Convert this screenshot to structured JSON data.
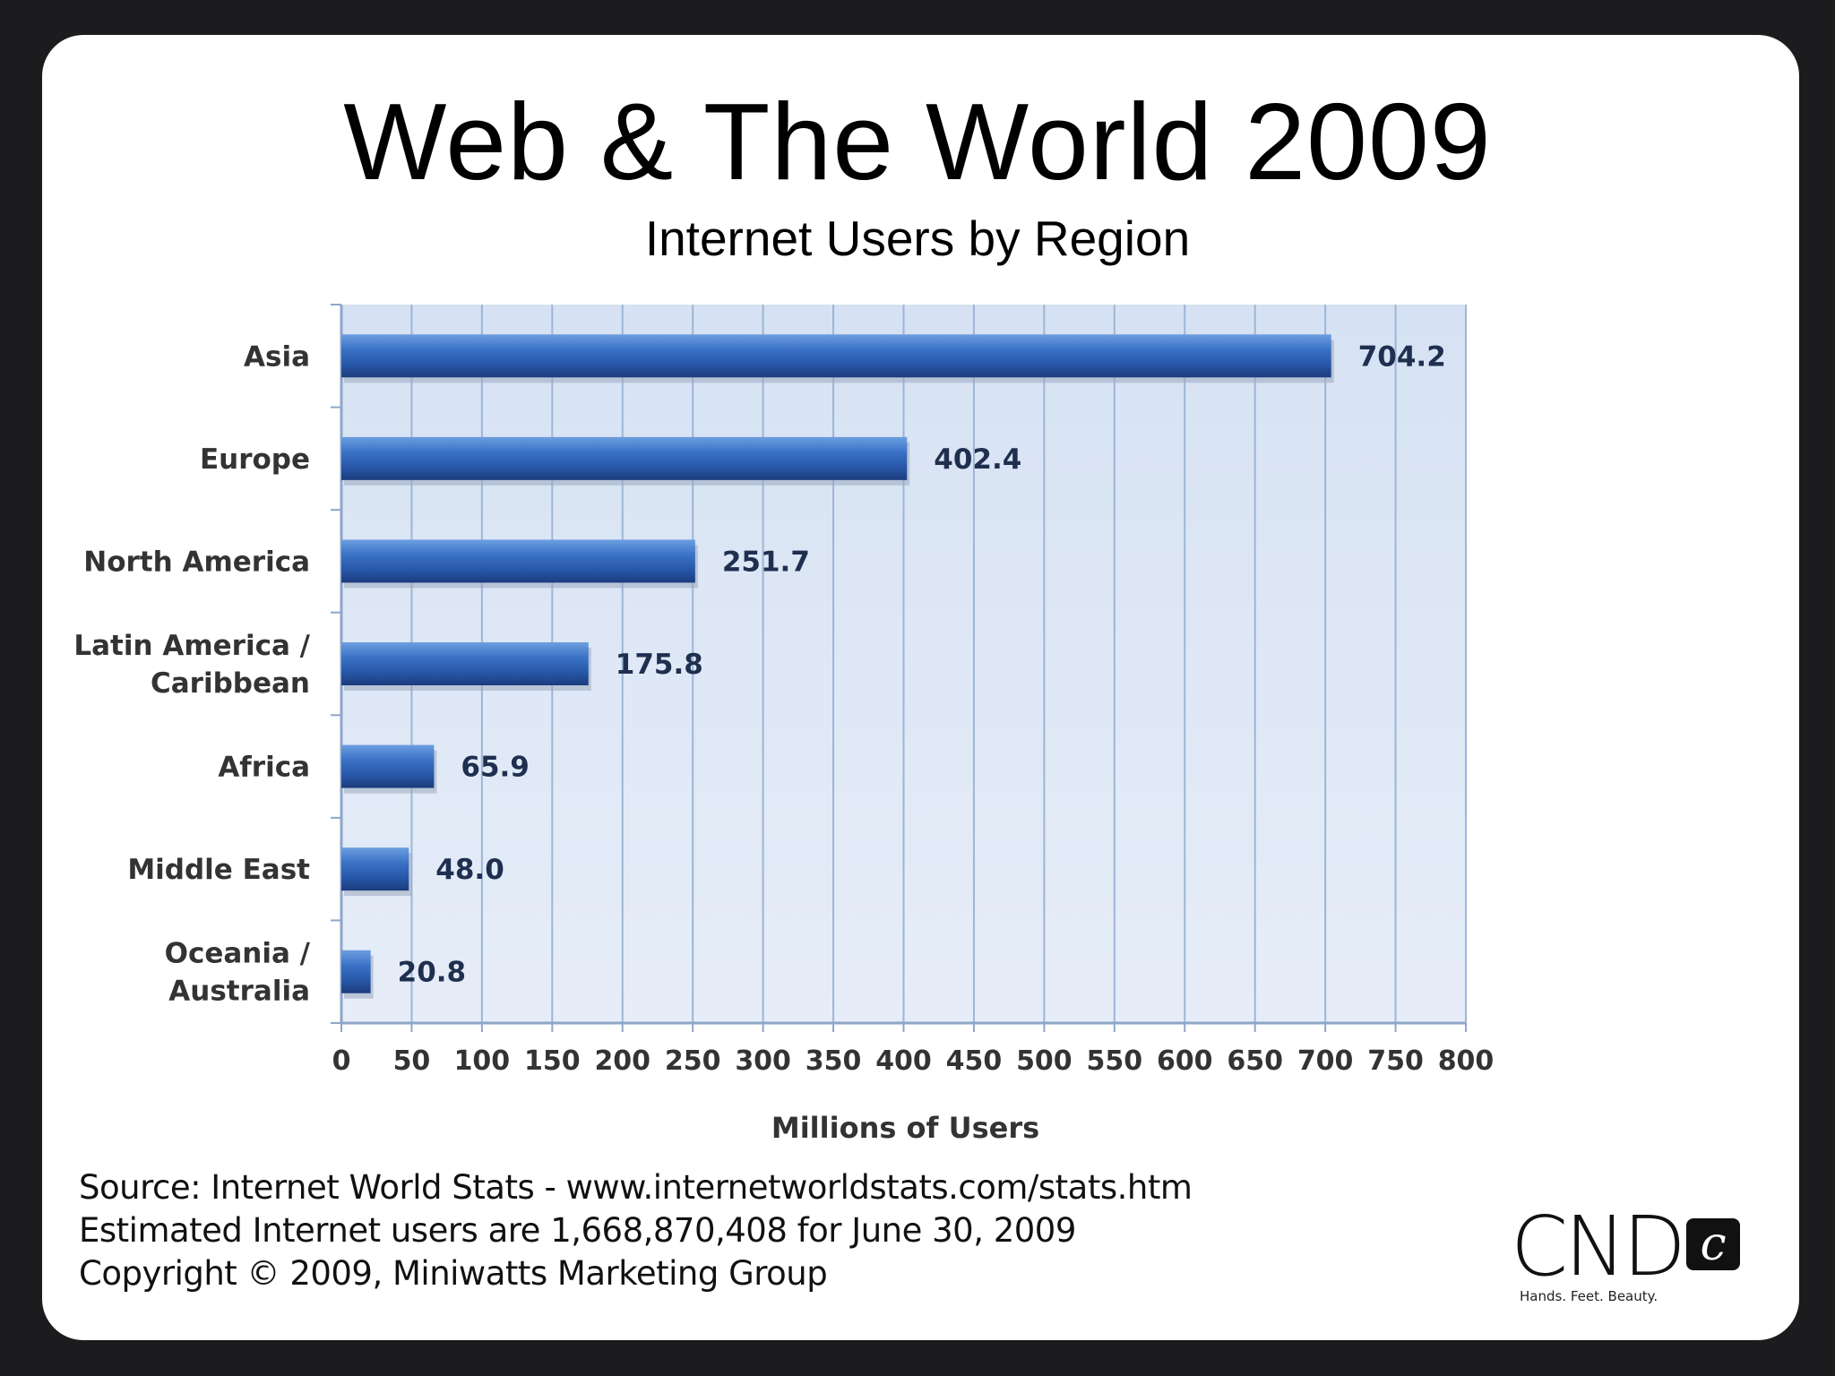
{
  "slide": {
    "title": "Web & The World 2009",
    "subtitle": "Internet Users by Region"
  },
  "chart_data": {
    "type": "bar",
    "orientation": "horizontal",
    "title": "Web & The World 2009",
    "subtitle": "Internet Users by Region",
    "categories": [
      [
        "Asia"
      ],
      [
        "Europe"
      ],
      [
        "North America"
      ],
      [
        "Latin America /",
        " Caribbean"
      ],
      [
        "Africa"
      ],
      [
        "Middle East"
      ],
      [
        "Oceania  /",
        "Australia"
      ]
    ],
    "values": [
      704.2,
      402.4,
      251.7,
      175.8,
      65.9,
      48.0,
      20.8
    ],
    "value_labels": [
      "704.2",
      "402.4",
      "251.7",
      "175.8",
      "65.9",
      "48.0",
      "20.8"
    ],
    "xlabel": "Millions of Users",
    "ylabel": "",
    "xlim": [
      0,
      800
    ],
    "xticks": [
      0,
      50,
      100,
      150,
      200,
      250,
      300,
      350,
      400,
      450,
      500,
      550,
      600,
      650,
      700,
      750,
      800
    ],
    "grid": true,
    "colors": {
      "plot_bg": "#dce6f4",
      "grid": "#9db5d6",
      "axis": "#8ea6c8",
      "bar_top": "#5b8fd6",
      "bar_mid": "#2f64b8",
      "bar_bottom": "#1d3f80",
      "label": "#333333",
      "value_label": "#1f2f4f"
    }
  },
  "source": {
    "line1": "Source: Internet World Stats - www.internetworldstats.com/stats.htm",
    "line2": "Estimated Internet users are 1,668,870,408 for June 30, 2009",
    "line3": "Copyright © 2009, Miniwatts Marketing Group"
  },
  "logo": {
    "letters": "CND",
    "mark": "c",
    "tagline": "Hands. Feet. Beauty."
  }
}
